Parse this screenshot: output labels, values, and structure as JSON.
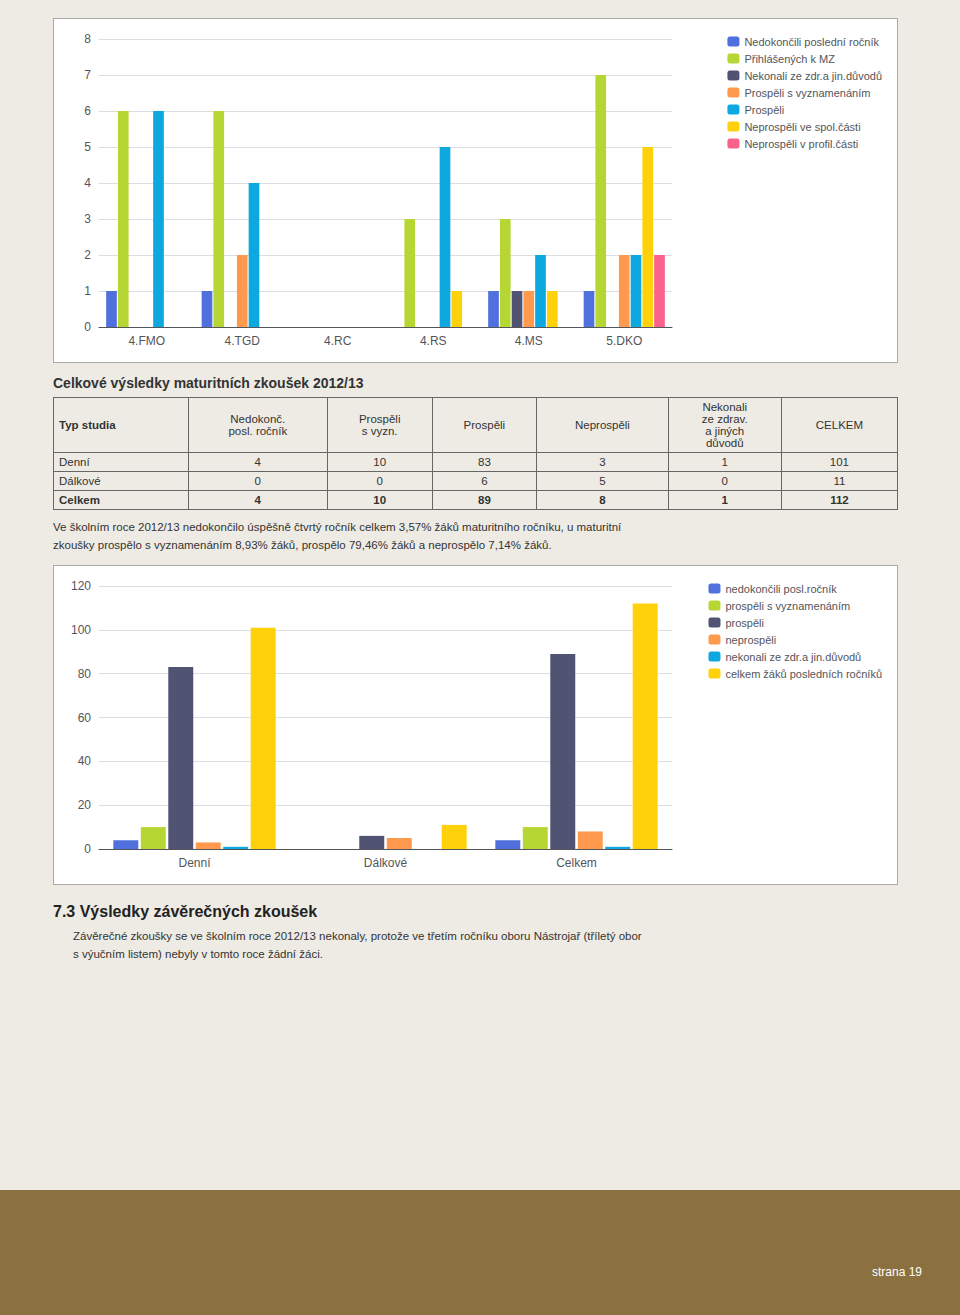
{
  "chart_data": [
    {
      "type": "bar",
      "categories": [
        "4.FMO",
        "4.TGD",
        "4.RC",
        "4.RS",
        "4.MS",
        "5.DKO"
      ],
      "series": [
        {
          "name": "Nedokončili poslední ročník",
          "values": [
            1,
            1,
            0,
            0,
            1,
            1
          ]
        },
        {
          "name": "Přihlášených k MZ",
          "values": [
            6,
            6,
            0,
            3,
            3,
            7
          ]
        },
        {
          "name": "Nekonali ze zdr.a jin.důvodů",
          "values": [
            0,
            0,
            0,
            0,
            1,
            0
          ]
        },
        {
          "name": "Prospěli s vyznamenáním",
          "values": [
            0,
            2,
            0,
            0,
            1,
            2
          ]
        },
        {
          "name": "Prospěli",
          "values": [
            6,
            4,
            0,
            5,
            2,
            2
          ]
        },
        {
          "name": "Neprospěli ve spol.části",
          "values": [
            0,
            0,
            0,
            1,
            1,
            5
          ]
        },
        {
          "name": "Neprospěli v profil.části",
          "values": [
            0,
            0,
            0,
            0,
            0,
            2
          ]
        }
      ],
      "ylim": [
        0,
        8
      ],
      "yticks": [
        0,
        1,
        2,
        3,
        4,
        5,
        6,
        7,
        8
      ],
      "grid": true,
      "legend": "upper right"
    },
    {
      "type": "table",
      "title": "Celkové výsledky maturitních zkoušek 2012/13",
      "columns": [
        "Typ studia",
        "Nedokonč.\nposl. ročník",
        "Prospěli\ns vyzn.",
        "Prospěli",
        "Neprospěli",
        "Nekonali\nze zdrav.\na jiných\ndůvodů",
        "CELKEM"
      ],
      "rows": [
        [
          "Denní",
          "4",
          "10",
          "83",
          "3",
          "1",
          "101"
        ],
        [
          "Dálkové",
          "0",
          "0",
          "6",
          "5",
          "0",
          "11"
        ],
        [
          "Celkem",
          "4",
          "10",
          "89",
          "8",
          "1",
          "112"
        ]
      ],
      "annotations": [
        "Ve školním roce 2012/13 nedokončilo úspěšně čtvrtý ročník celkem 3,57% žáků maturitního ročníku, u maturitní\nzkoušky prospělo s vyznamenáním 8,93% žáků, prospělo 79,46% žáků a neprospělo 7,14% žáků."
      ]
    },
    {
      "type": "bar",
      "categories": [
        "Denní",
        "Dálkové",
        "Celkem"
      ],
      "series": [
        {
          "name": "nedokončili posl.ročník",
          "values": [
            4,
            0,
            4
          ]
        },
        {
          "name": "prospěli s vyznamenáním",
          "values": [
            10,
            0,
            10
          ]
        },
        {
          "name": "prospěli",
          "values": [
            83,
            6,
            89
          ]
        },
        {
          "name": "neprospěli",
          "values": [
            3,
            5,
            8
          ]
        },
        {
          "name": "nekonali ze zdr.a jin.důvodů",
          "values": [
            1,
            0,
            1
          ]
        },
        {
          "name": "celkem žáků posledních ročníků",
          "values": [
            101,
            11,
            112
          ]
        }
      ],
      "ylim": [
        0,
        120
      ],
      "yticks": [
        0,
        20,
        40,
        60,
        80,
        100,
        120
      ],
      "grid": true,
      "legend": "upper right"
    },
    {
      "type": "text",
      "title": "7.3 Výsledky závěrečných zkoušek",
      "annotations": [
        "Závěrečné zkoušky se ve školním roce 2012/13 nekonaly, protože ve třetím ročníku oboru Nástrojař (tříletý obor\ns výučním listem) nebyly v tomto roce žádní žáci."
      ]
    },
    {
      "type": "footer",
      "annotations": [
        "strana 19"
      ]
    }
  ]
}
